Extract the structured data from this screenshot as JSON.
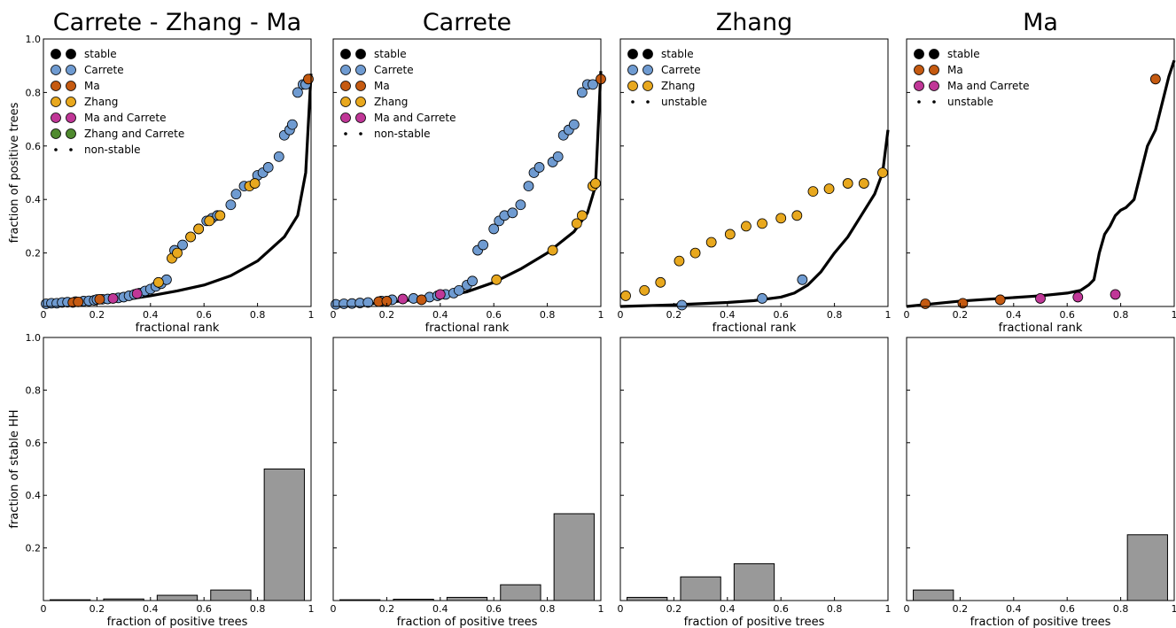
{
  "chart_data": [
    {
      "type": "scatter",
      "title": "Carrete - Zhang - Ma",
      "xlabel": "fractional rank",
      "ylabel": "fraction of positive trees",
      "xlim": [
        0,
        1
      ],
      "ylim": [
        0,
        1
      ],
      "xticks": [
        "0",
        "0.2",
        "0.4",
        "0.6",
        "0.8",
        "1"
      ],
      "yticks": [
        "0.2",
        "0.4",
        "0.6",
        "0.8",
        "1.0"
      ],
      "legend_position": "top-left",
      "legend": [
        {
          "label": "stable",
          "marker": "big",
          "color": "#000000"
        },
        {
          "label": "Carrete",
          "marker": "big",
          "color": "#6f9bd1"
        },
        {
          "label": "Ma",
          "marker": "big",
          "color": "#c55a11"
        },
        {
          "label": "Zhang",
          "marker": "big",
          "color": "#e8a81e"
        },
        {
          "label": "Ma and Carrete",
          "marker": "big",
          "color": "#c03797"
        },
        {
          "label": "Zhang and Carrete",
          "marker": "big",
          "color": "#4f8a2e"
        },
        {
          "label": "non-stable",
          "marker": "small",
          "color": "#000000"
        }
      ],
      "background_curve": [
        [
          0,
          0.0
        ],
        [
          0.1,
          0.006
        ],
        [
          0.2,
          0.015
        ],
        [
          0.3,
          0.025
        ],
        [
          0.4,
          0.04
        ],
        [
          0.5,
          0.058
        ],
        [
          0.6,
          0.08
        ],
        [
          0.7,
          0.115
        ],
        [
          0.8,
          0.17
        ],
        [
          0.9,
          0.26
        ],
        [
          0.95,
          0.34
        ],
        [
          0.98,
          0.5
        ],
        [
          1.0,
          0.87
        ]
      ],
      "series": [
        {
          "name": "Carrete",
          "color": "#6f9bd1",
          "points": [
            [
              0.01,
              0.01
            ],
            [
              0.03,
              0.012
            ],
            [
              0.05,
              0.012
            ],
            [
              0.07,
              0.015
            ],
            [
              0.09,
              0.016
            ],
            [
              0.12,
              0.018
            ],
            [
              0.15,
              0.02
            ],
            [
              0.17,
              0.021
            ],
            [
              0.19,
              0.023
            ],
            [
              0.2,
              0.026
            ],
            [
              0.22,
              0.027
            ],
            [
              0.24,
              0.028
            ],
            [
              0.28,
              0.032
            ],
            [
              0.3,
              0.035
            ],
            [
              0.32,
              0.04
            ],
            [
              0.34,
              0.045
            ],
            [
              0.36,
              0.05
            ],
            [
              0.38,
              0.058
            ],
            [
              0.4,
              0.065
            ],
            [
              0.42,
              0.075
            ],
            [
              0.44,
              0.085
            ],
            [
              0.46,
              0.1
            ],
            [
              0.49,
              0.21
            ],
            [
              0.52,
              0.23
            ],
            [
              0.55,
              0.26
            ],
            [
              0.58,
              0.29
            ],
            [
              0.61,
              0.32
            ],
            [
              0.63,
              0.33
            ],
            [
              0.65,
              0.34
            ],
            [
              0.7,
              0.38
            ],
            [
              0.72,
              0.42
            ],
            [
              0.75,
              0.45
            ],
            [
              0.8,
              0.49
            ],
            [
              0.82,
              0.5
            ],
            [
              0.84,
              0.52
            ],
            [
              0.88,
              0.56
            ],
            [
              0.9,
              0.64
            ],
            [
              0.92,
              0.66
            ],
            [
              0.93,
              0.68
            ],
            [
              0.95,
              0.8
            ],
            [
              0.97,
              0.83
            ],
            [
              0.98,
              0.83
            ]
          ]
        },
        {
          "name": "Ma",
          "color": "#c55a11",
          "points": [
            [
              0.11,
              0.015
            ],
            [
              0.13,
              0.017
            ],
            [
              0.21,
              0.027
            ],
            [
              0.99,
              0.85
            ]
          ]
        },
        {
          "name": "Zhang",
          "color": "#e8a81e",
          "points": [
            [
              0.43,
              0.09
            ],
            [
              0.48,
              0.18
            ],
            [
              0.5,
              0.2
            ],
            [
              0.55,
              0.26
            ],
            [
              0.58,
              0.29
            ],
            [
              0.62,
              0.32
            ],
            [
              0.66,
              0.34
            ],
            [
              0.77,
              0.45
            ],
            [
              0.79,
              0.46
            ]
          ]
        },
        {
          "name": "Ma and Carrete",
          "color": "#c03797",
          "points": [
            [
              0.26,
              0.03
            ],
            [
              0.35,
              0.048
            ]
          ]
        }
      ]
    },
    {
      "type": "scatter",
      "title": "Carrete",
      "xlabel": "fractional rank",
      "ylabel": "",
      "xlim": [
        0,
        1
      ],
      "ylim": [
        0,
        1
      ],
      "xticks": [
        "0",
        "0.2",
        "0.4",
        "0.6",
        "0.8",
        "1"
      ],
      "legend_position": "top-left",
      "legend": [
        {
          "label": "stable",
          "marker": "big",
          "color": "#000000"
        },
        {
          "label": "Carrete",
          "marker": "big",
          "color": "#6f9bd1"
        },
        {
          "label": "Ma",
          "marker": "big",
          "color": "#c55a11"
        },
        {
          "label": "Zhang",
          "marker": "big",
          "color": "#e8a81e"
        },
        {
          "label": "Ma and Carrete",
          "marker": "big",
          "color": "#c03797"
        },
        {
          "label": "non-stable",
          "marker": "small",
          "color": "#000000"
        }
      ],
      "background_curve": [
        [
          0,
          0.0
        ],
        [
          0.2,
          0.015
        ],
        [
          0.4,
          0.035
        ],
        [
          0.5,
          0.055
        ],
        [
          0.6,
          0.09
        ],
        [
          0.7,
          0.14
        ],
        [
          0.8,
          0.2
        ],
        [
          0.9,
          0.28
        ],
        [
          0.95,
          0.35
        ],
        [
          0.98,
          0.45
        ],
        [
          1.0,
          0.88
        ]
      ],
      "series": [
        {
          "name": "Carrete",
          "color": "#6f9bd1",
          "points": [
            [
              0.01,
              0.008
            ],
            [
              0.04,
              0.01
            ],
            [
              0.07,
              0.011
            ],
            [
              0.1,
              0.013
            ],
            [
              0.13,
              0.015
            ],
            [
              0.18,
              0.02
            ],
            [
              0.22,
              0.025
            ],
            [
              0.3,
              0.03
            ],
            [
              0.36,
              0.035
            ],
            [
              0.39,
              0.04
            ],
            [
              0.42,
              0.045
            ],
            [
              0.45,
              0.05
            ],
            [
              0.47,
              0.06
            ],
            [
              0.5,
              0.08
            ],
            [
              0.52,
              0.095
            ],
            [
              0.54,
              0.21
            ],
            [
              0.56,
              0.23
            ],
            [
              0.6,
              0.29
            ],
            [
              0.62,
              0.32
            ],
            [
              0.64,
              0.34
            ],
            [
              0.67,
              0.35
            ],
            [
              0.7,
              0.38
            ],
            [
              0.73,
              0.45
            ],
            [
              0.75,
              0.5
            ],
            [
              0.77,
              0.52
            ],
            [
              0.82,
              0.54
            ],
            [
              0.84,
              0.56
            ],
            [
              0.86,
              0.64
            ],
            [
              0.88,
              0.66
            ],
            [
              0.9,
              0.68
            ],
            [
              0.93,
              0.8
            ],
            [
              0.95,
              0.83
            ],
            [
              0.97,
              0.83
            ]
          ]
        },
        {
          "name": "Ma",
          "color": "#c55a11",
          "points": [
            [
              0.17,
              0.018
            ],
            [
              0.2,
              0.02
            ],
            [
              0.33,
              0.025
            ],
            [
              1.0,
              0.85
            ]
          ]
        },
        {
          "name": "Zhang",
          "color": "#e8a81e",
          "points": [
            [
              0.61,
              0.1
            ],
            [
              0.82,
              0.21
            ],
            [
              0.91,
              0.31
            ],
            [
              0.93,
              0.34
            ],
            [
              0.97,
              0.45
            ],
            [
              0.98,
              0.46
            ]
          ]
        },
        {
          "name": "Ma and Carrete",
          "color": "#c03797",
          "points": [
            [
              0.26,
              0.028
            ],
            [
              0.4,
              0.045
            ]
          ]
        }
      ]
    },
    {
      "type": "scatter",
      "title": "Zhang",
      "xlabel": "fractional rank",
      "ylabel": "",
      "xlim": [
        0,
        1
      ],
      "ylim": [
        0,
        1
      ],
      "xticks": [
        "0",
        "0.2",
        "0.4",
        "0.6",
        "0.8",
        "1"
      ],
      "legend_position": "top-left",
      "legend": [
        {
          "label": "stable",
          "marker": "big",
          "color": "#000000"
        },
        {
          "label": "Carrete",
          "marker": "big",
          "color": "#6f9bd1"
        },
        {
          "label": "Zhang",
          "marker": "big",
          "color": "#e8a81e"
        },
        {
          "label": "unstable",
          "marker": "small",
          "color": "#000000"
        }
      ],
      "background_curve": [
        [
          0,
          0.0
        ],
        [
          0.2,
          0.006
        ],
        [
          0.4,
          0.015
        ],
        [
          0.5,
          0.022
        ],
        [
          0.6,
          0.035
        ],
        [
          0.65,
          0.05
        ],
        [
          0.7,
          0.08
        ],
        [
          0.75,
          0.13
        ],
        [
          0.8,
          0.2
        ],
        [
          0.85,
          0.26
        ],
        [
          0.9,
          0.34
        ],
        [
          0.95,
          0.42
        ],
        [
          0.98,
          0.5
        ],
        [
          1.0,
          0.66
        ]
      ],
      "series": [
        {
          "name": "Carrete",
          "color": "#6f9bd1",
          "points": [
            [
              0.23,
              0.005
            ],
            [
              0.53,
              0.03
            ],
            [
              0.68,
              0.1
            ]
          ]
        },
        {
          "name": "Zhang",
          "color": "#e8a81e",
          "points": [
            [
              0.02,
              0.04
            ],
            [
              0.09,
              0.06
            ],
            [
              0.15,
              0.09
            ],
            [
              0.22,
              0.17
            ],
            [
              0.28,
              0.2
            ],
            [
              0.34,
              0.24
            ],
            [
              0.41,
              0.27
            ],
            [
              0.47,
              0.3
            ],
            [
              0.53,
              0.31
            ],
            [
              0.6,
              0.33
            ],
            [
              0.66,
              0.34
            ],
            [
              0.72,
              0.43
            ],
            [
              0.78,
              0.44
            ],
            [
              0.85,
              0.46
            ],
            [
              0.91,
              0.46
            ],
            [
              0.98,
              0.5
            ]
          ]
        }
      ]
    },
    {
      "type": "scatter",
      "title": "Ma",
      "xlabel": "fractional rank",
      "ylabel": "",
      "xlim": [
        0,
        1
      ],
      "ylim": [
        0,
        1
      ],
      "xticks": [
        "0",
        "0.2",
        "0.4",
        "0.6",
        "0.8",
        "1"
      ],
      "legend_position": "top-left",
      "legend": [
        {
          "label": "stable",
          "marker": "big",
          "color": "#000000"
        },
        {
          "label": "Ma",
          "marker": "big",
          "color": "#c55a11"
        },
        {
          "label": "Ma and Carrete",
          "marker": "big",
          "color": "#c03797"
        },
        {
          "label": "unstable",
          "marker": "small",
          "color": "#000000"
        }
      ],
      "background_curve": [
        [
          0,
          0.0
        ],
        [
          0.2,
          0.02
        ],
        [
          0.35,
          0.03
        ],
        [
          0.5,
          0.04
        ],
        [
          0.6,
          0.05
        ],
        [
          0.65,
          0.06
        ],
        [
          0.68,
          0.08
        ],
        [
          0.7,
          0.1
        ],
        [
          0.72,
          0.2
        ],
        [
          0.74,
          0.27
        ],
        [
          0.76,
          0.3
        ],
        [
          0.78,
          0.34
        ],
        [
          0.8,
          0.36
        ],
        [
          0.82,
          0.37
        ],
        [
          0.85,
          0.4
        ],
        [
          0.88,
          0.52
        ],
        [
          0.9,
          0.6
        ],
        [
          0.93,
          0.66
        ],
        [
          0.96,
          0.78
        ],
        [
          0.98,
          0.86
        ],
        [
          1.0,
          0.92
        ]
      ],
      "series": [
        {
          "name": "Ma",
          "color": "#c55a11",
          "points": [
            [
              0.07,
              0.01
            ],
            [
              0.21,
              0.012
            ],
            [
              0.35,
              0.025
            ],
            [
              0.93,
              0.85
            ]
          ]
        },
        {
          "name": "Ma and Carrete",
          "color": "#c03797",
          "points": [
            [
              0.5,
              0.03
            ],
            [
              0.64,
              0.035
            ],
            [
              0.78,
              0.045
            ]
          ]
        }
      ]
    },
    {
      "type": "bar",
      "title": "",
      "xlabel": "fraction of positive trees",
      "ylabel": "fraction of stable HH",
      "xlim": [
        0,
        1
      ],
      "ylim": [
        0,
        1
      ],
      "xticks": [
        "0",
        "0.2",
        "0.4",
        "0.6",
        "0.8",
        "1"
      ],
      "yticks": [
        "0.2",
        "0.4",
        "0.6",
        "0.8",
        "1.0"
      ],
      "bins": [
        0.1,
        0.3,
        0.5,
        0.7,
        0.9
      ],
      "values": [
        0.003,
        0.006,
        0.02,
        0.04,
        0.5
      ],
      "color": "#999999"
    },
    {
      "type": "bar",
      "title": "",
      "xlabel": "fraction of positive trees",
      "ylabel": "",
      "xlim": [
        0,
        1
      ],
      "ylim": [
        0,
        1
      ],
      "xticks": [
        "0",
        "0.2",
        "0.4",
        "0.6",
        "0.8",
        "1"
      ],
      "bins": [
        0.1,
        0.3,
        0.5,
        0.7,
        0.9
      ],
      "values": [
        0.003,
        0.005,
        0.012,
        0.06,
        0.33
      ],
      "color": "#999999"
    },
    {
      "type": "bar",
      "title": "",
      "xlabel": "fraction of positive trees",
      "ylabel": "",
      "xlim": [
        0,
        1
      ],
      "ylim": [
        0,
        1
      ],
      "xticks": [
        "0",
        "0.2",
        "0.4",
        "0.6",
        "0.8",
        "1"
      ],
      "bins": [
        0.1,
        0.3,
        0.5,
        0.7,
        0.9
      ],
      "values": [
        0.012,
        0.09,
        0.14,
        0,
        0
      ],
      "color": "#999999"
    },
    {
      "type": "bar",
      "title": "",
      "xlabel": "fraction of positive trees",
      "ylabel": "",
      "xlim": [
        0,
        1
      ],
      "ylim": [
        0,
        1
      ],
      "xticks": [
        "0",
        "0.2",
        "0.4",
        "0.6",
        "0.8",
        "1"
      ],
      "bins": [
        0.1,
        0.3,
        0.5,
        0.7,
        0.9
      ],
      "values": [
        0.04,
        0,
        0,
        0,
        0.25
      ],
      "color": "#999999"
    }
  ]
}
